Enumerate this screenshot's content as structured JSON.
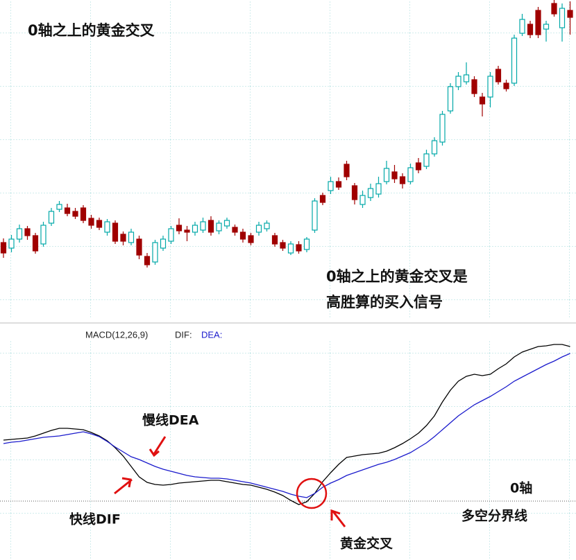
{
  "chart_data": [
    {
      "type": "candlestick",
      "title": "0轴之上的黄金交叉",
      "annotations": [
        "0轴之上的黄金交叉是",
        "高胜算的买入信号"
      ],
      "ylim": [
        0,
        460
      ],
      "grid": true,
      "up_color": "#00a8a8",
      "down_color": "#a00000",
      "open": [
        110,
        102,
        115,
        130,
        120,
        108,
        138,
        158,
        160,
        155,
        160,
        145,
        142,
        125,
        138,
        122,
        110,
        115,
        90,
        82,
        102,
        112,
        135,
        128,
        125,
        128,
        142,
        127,
        134,
        132,
        125,
        120,
        125,
        130,
        120,
        110,
        95,
        107,
        100,
        128,
        178,
        185,
        198,
        223,
        192,
        165,
        175,
        180,
        198,
        212,
        205,
        198,
        225,
        220,
        238,
        255,
        300,
        335,
        342,
        345,
        320,
        320,
        360,
        340,
        340,
        412,
        425,
        445,
        418,
        455,
        420,
        445
      ],
      "close": [
        95,
        115,
        130,
        120,
        98,
        135,
        155,
        165,
        152,
        148,
        142,
        135,
        132,
        140,
        112,
        112,
        125,
        92,
        78,
        110,
        115,
        130,
        127,
        125,
        135,
        140,
        125,
        138,
        142,
        125,
        115,
        110,
        135,
        138,
        108,
        102,
        108,
        98,
        115,
        170,
        168,
        198,
        190,
        205,
        172,
        178,
        188,
        195,
        217,
        202,
        195,
        218,
        215,
        238,
        257,
        295,
        335,
        350,
        352,
        325,
        310,
        350,
        342,
        332,
        405,
        432,
        410,
        410,
        425,
        440,
        448,
        435
      ],
      "high": [
        116,
        121,
        136,
        134,
        124,
        140,
        160,
        170,
        166,
        160,
        164,
        150,
        146,
        144,
        142,
        126,
        130,
        120,
        95,
        114,
        120,
        134,
        145,
        134,
        140,
        146,
        148,
        142,
        146,
        136,
        130,
        124,
        140,
        142,
        124,
        114,
        112,
        112,
        118,
        174,
        182,
        205,
        204,
        228,
        196,
        185,
        195,
        205,
        228,
        222,
        210,
        224,
        232,
        244,
        262,
        300,
        340,
        356,
        370,
        350,
        326,
        356,
        365,
        345,
        410,
        440,
        430,
        450,
        430,
        460,
        455,
        458
      ],
      "low": [
        88,
        96,
        110,
        114,
        94,
        104,
        134,
        154,
        148,
        144,
        138,
        130,
        128,
        120,
        108,
        106,
        106,
        86,
        74,
        78,
        98,
        108,
        122,
        112,
        120,
        124,
        120,
        122,
        130,
        120,
        110,
        106,
        120,
        126,
        104,
        98,
        92,
        94,
        96,
        124,
        164,
        180,
        186,
        200,
        165,
        160,
        170,
        175,
        194,
        196,
        188,
        194,
        210,
        216,
        234,
        250,
        296,
        330,
        338,
        320,
        292,
        305,
        338,
        328,
        336,
        408,
        405,
        405,
        400,
        436,
        400,
        410
      ]
    },
    {
      "type": "line",
      "title": "MACD(12,26,9)",
      "annotations": [
        "慢线DEA",
        "快线DIF",
        "黄金交叉",
        "0轴",
        "多空分界线"
      ],
      "ylim": [
        -85,
        233
      ],
      "grid": true,
      "series": [
        {
          "name": "DIF:",
          "color": "#000000",
          "values": [
            88,
            89,
            90,
            91,
            94,
            98,
            102,
            105,
            105,
            104,
            103,
            99,
            94,
            87,
            77,
            65,
            50,
            35,
            27,
            24,
            23,
            24,
            26,
            27,
            28,
            29,
            30,
            30,
            28,
            26,
            24,
            23,
            20,
            17,
            13,
            8,
            1,
            -5,
            -1,
            11,
            28,
            41,
            53,
            63,
            65,
            67,
            68,
            69,
            72,
            77,
            83,
            90,
            98,
            109,
            123,
            143,
            160,
            173,
            180,
            183,
            181,
            183,
            191,
            198,
            208,
            215,
            219,
            223,
            224,
            226,
            226,
            223
          ]
        },
        {
          "name": "DEA:",
          "color": "#1a1acc",
          "values": [
            83,
            85,
            86,
            88,
            90,
            92,
            93,
            94,
            96,
            98,
            100,
            97,
            93,
            86,
            78,
            71,
            64,
            60,
            55,
            50,
            46,
            43,
            40,
            37,
            35,
            34,
            33,
            33,
            32,
            30,
            28,
            26,
            23,
            20,
            17,
            14,
            10,
            7,
            5,
            11,
            20,
            26,
            31,
            37,
            41,
            45,
            49,
            53,
            56,
            60,
            65,
            70,
            77,
            84,
            93,
            103,
            113,
            123,
            131,
            139,
            145,
            151,
            158,
            165,
            173,
            179,
            185,
            191,
            197,
            202,
            208,
            213
          ]
        }
      ]
    }
  ]
}
